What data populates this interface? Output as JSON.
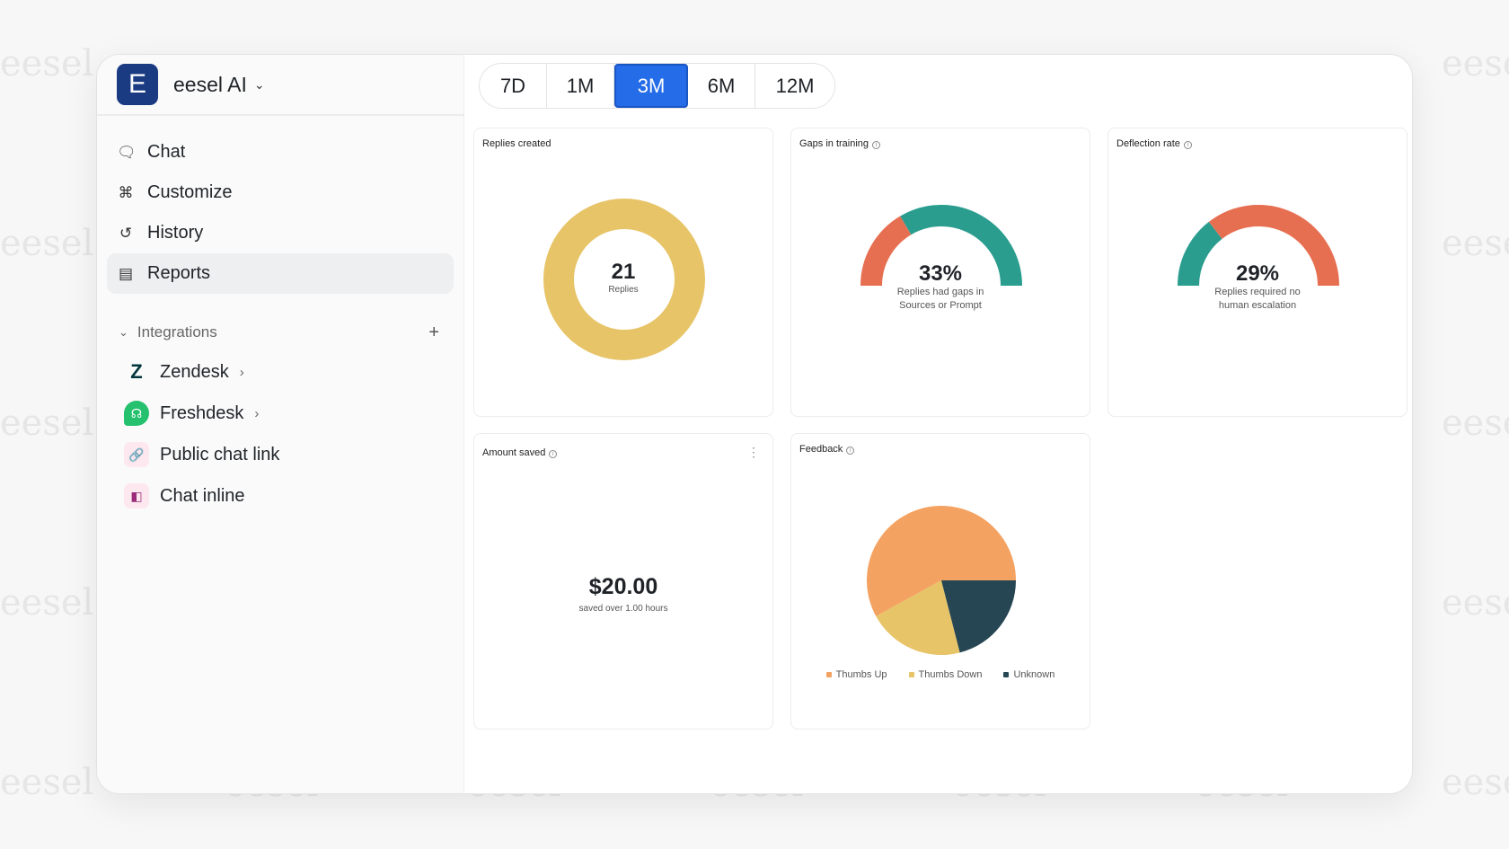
{
  "watermark": "eesel",
  "app": {
    "name": "eesel AI",
    "logo_letter": "E"
  },
  "nav": [
    {
      "label": "Chat",
      "icon": "chat-bubble-icon"
    },
    {
      "label": "Customize",
      "icon": "shapes-icon"
    },
    {
      "label": "History",
      "icon": "history-icon"
    },
    {
      "label": "Reports",
      "icon": "bar-chart-icon",
      "active": true
    }
  ],
  "integrations": {
    "label": "Integrations",
    "items": [
      {
        "label": "Zendesk",
        "icon": "zendesk-icon",
        "has_chevron": true
      },
      {
        "label": "Freshdesk",
        "icon": "freshdesk-icon",
        "has_chevron": true
      },
      {
        "label": "Public chat link",
        "icon": "link-icon"
      },
      {
        "label": "Chat inline",
        "icon": "chat-inline-icon"
      }
    ]
  },
  "ranges": {
    "options": [
      "7D",
      "1M",
      "3M",
      "6M",
      "12M"
    ],
    "selected": "3M"
  },
  "colors": {
    "accent": "#246ce8",
    "gold": "#e7c468",
    "orange": "#e76f51",
    "teal": "#2a9d8f",
    "peach": "#f4a261",
    "navy": "#264653"
  },
  "cards": {
    "replies": {
      "title": "Replies created",
      "value": "21",
      "label": "Replies"
    },
    "gaps": {
      "title": "Gaps in training",
      "value": "33%",
      "label1": "Replies had gaps in",
      "label2": "Sources or Prompt",
      "percent": 33
    },
    "deflection": {
      "title": "Deflection rate",
      "value": "29%",
      "label1": "Replies required no",
      "label2": "human escalation",
      "percent": 29
    },
    "amount": {
      "title": "Amount saved",
      "value": "$20.00",
      "label": "saved over 1.00 hours"
    },
    "feedback": {
      "title": "Feedback"
    }
  },
  "chart_data": {
    "type": "pie",
    "title": "Feedback",
    "series": [
      {
        "name": "Thumbs Up",
        "value": 58,
        "color": "#f4a261"
      },
      {
        "name": "Thumbs Down",
        "value": 21,
        "color": "#e7c468"
      },
      {
        "name": "Unknown",
        "value": 21,
        "color": "#264653"
      }
    ],
    "legend": "bottom"
  }
}
